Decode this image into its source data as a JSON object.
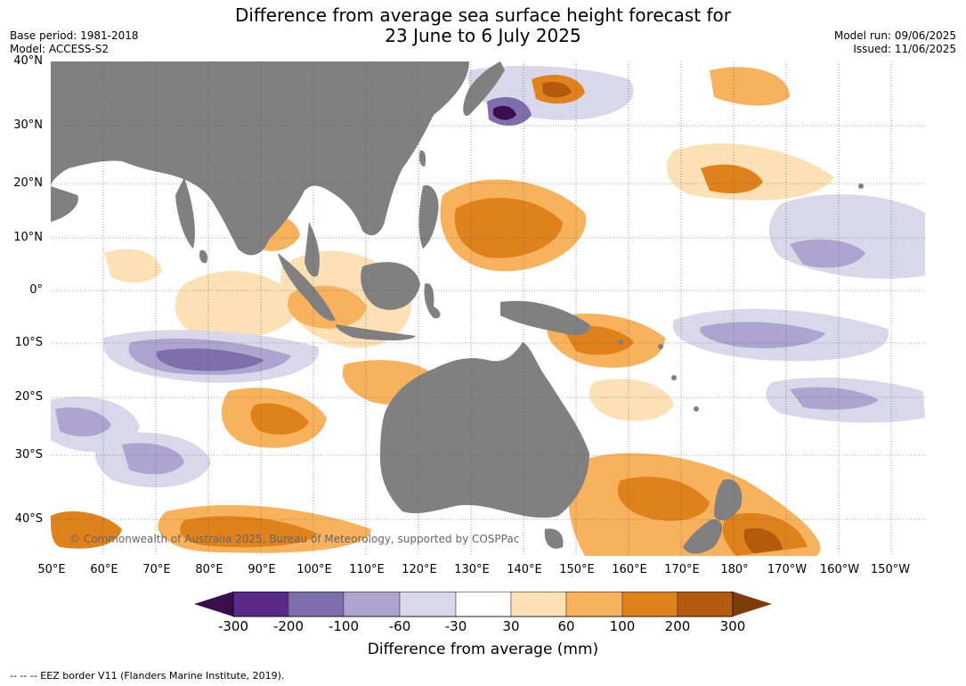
{
  "title": {
    "line1": "Difference from average sea surface height forecast for",
    "line2": "23 June to 6 July 2025"
  },
  "meta": {
    "base_period": "Base period: 1981-2018",
    "model": "Model: ACCESS-S2",
    "model_run": "Model run: 09/06/2025",
    "issued": "Issued: 11/06/2025"
  },
  "map": {
    "land_color": "#808080",
    "copyright": "© Commonwealth of Australia 2025, Bureau of Meteorology, supported by COSPPac",
    "lat_labels": [
      "40°N",
      "30°N",
      "20°N",
      "10°N",
      "0°",
      "10°S",
      "20°S",
      "30°S",
      "40°S"
    ],
    "lon_labels": [
      "50°E",
      "60°E",
      "70°E",
      "80°E",
      "90°E",
      "100°E",
      "110°E",
      "120°E",
      "130°E",
      "140°E",
      "150°E",
      "160°E",
      "170°E",
      "180°",
      "170°W",
      "160°W",
      "150°W"
    ]
  },
  "colorbar": {
    "colors": [
      "#3b0f4f",
      "#5a2a8a",
      "#7e6fac",
      "#ada5cf",
      "#d8d8ea",
      "#ffffff",
      "#fde1b5",
      "#f8b25c",
      "#e0821b",
      "#b35a0c",
      "#7f3b08"
    ],
    "ticks": [
      "-300",
      "-200",
      "-100",
      "-60",
      "-30",
      "30",
      "60",
      "100",
      "200",
      "300"
    ],
    "label": "Difference from average (mm)"
  },
  "footnote": "-- -- -- EEZ border V11 (Flanders Marine Institute, 2019)."
}
